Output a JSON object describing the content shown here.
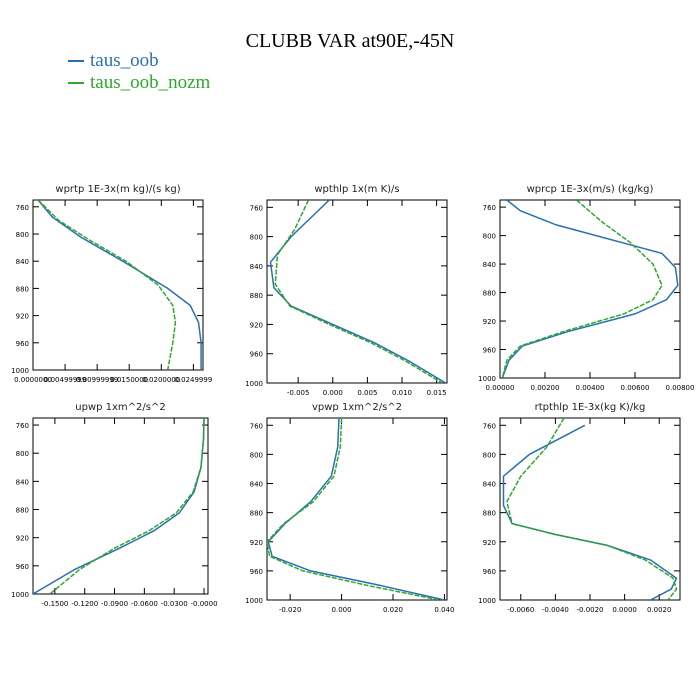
{
  "figure": {
    "title": "CLUBB VAR at90E,-45N",
    "legend": [
      {
        "label": "taus_oob",
        "color": "#2a70b0"
      },
      {
        "label": "taus_oob_nozm",
        "color": "#2fa82f"
      }
    ]
  },
  "chart_data": [
    {
      "type": "line",
      "title": "wprtp  1E-3x(m kg)/(s kg)",
      "xlim": [
        0.0,
        0.0265
      ],
      "ylim": [
        750,
        1000
      ],
      "y_reversed": true,
      "xticks": [
        "0.0000000",
        "0.00499999",
        "0.00999999",
        "0.0150000",
        "0.0200000",
        "0.0249999"
      ],
      "xtick_values": [
        0.0,
        0.005,
        0.01,
        0.015,
        0.02,
        0.025
      ],
      "yticks": [
        "760",
        "800",
        "840",
        "880",
        "920",
        "960",
        "1000"
      ],
      "ytick_values": [
        760,
        800,
        840,
        880,
        920,
        960,
        1000
      ],
      "series": [
        {
          "name": "taus_oob",
          "color": "#2a70b0",
          "x": [
            0.0008,
            0.003,
            0.0075,
            0.014,
            0.021,
            0.0245,
            0.0258,
            0.0262,
            0.0262
          ],
          "y": [
            750,
            775,
            805,
            840,
            880,
            905,
            930,
            960,
            1000
          ]
        },
        {
          "name": "taus_oob_nozm",
          "color": "#2fa82f",
          "x": [
            0.0008,
            0.004,
            0.009,
            0.0145,
            0.0195,
            0.0218,
            0.0222,
            0.0218,
            0.021
          ],
          "y": [
            750,
            780,
            810,
            840,
            875,
            905,
            930,
            960,
            1000
          ]
        }
      ]
    },
    {
      "type": "line",
      "title": "wpthlp  1x(m K)/s",
      "xlim": [
        -0.0095,
        0.0165
      ],
      "ylim": [
        750,
        1000
      ],
      "y_reversed": true,
      "xticks": [
        "-0.005",
        "0.000",
        "0.005",
        "0.010",
        "0.015"
      ],
      "xtick_values": [
        -0.005,
        0.0,
        0.005,
        0.01,
        0.015
      ],
      "yticks": [
        "760",
        "800",
        "840",
        "880",
        "920",
        "960",
        "1000"
      ],
      "ytick_values": [
        760,
        800,
        840,
        880,
        920,
        960,
        1000
      ],
      "series": [
        {
          "name": "taus_oob",
          "color": "#2a70b0",
          "x": [
            -0.0005,
            -0.006,
            -0.009,
            -0.0085,
            -0.006,
            0.0,
            0.006,
            0.011,
            0.0163
          ],
          "y": [
            750,
            800,
            835,
            870,
            895,
            920,
            945,
            970,
            1000
          ]
        },
        {
          "name": "taus_oob_nozm",
          "color": "#2fa82f",
          "x": [
            -0.0035,
            -0.0055,
            -0.008,
            -0.0083,
            -0.0062,
            -0.0005,
            0.0055,
            0.0105,
            0.0158
          ],
          "y": [
            750,
            790,
            825,
            865,
            895,
            920,
            945,
            970,
            1000
          ]
        }
      ]
    },
    {
      "type": "line",
      "title": "wprcp  1E-3x(m/s) (kg/kg)",
      "xlim": [
        0.0,
        0.008
      ],
      "ylim": [
        750,
        1000
      ],
      "y_reversed": true,
      "xticks": [
        "0.00000",
        "0.00200",
        "0.00400",
        "0.00600",
        "0.00800"
      ],
      "xtick_values": [
        0.0,
        0.002,
        0.004,
        0.006,
        0.008
      ],
      "yticks": [
        "760",
        "800",
        "840",
        "880",
        "920",
        "960",
        "1000"
      ],
      "ytick_values": [
        760,
        800,
        840,
        880,
        920,
        960,
        1000
      ],
      "series": [
        {
          "name": "taus_oob",
          "color": "#2a70b0",
          "x": [
            0.0003,
            0.0009,
            0.0025,
            0.0072,
            0.0078,
            0.0079,
            0.0074,
            0.006,
            0.003,
            0.001,
            0.0004,
            0.0001
          ],
          "y": [
            750,
            765,
            785,
            825,
            845,
            870,
            890,
            910,
            935,
            955,
            975,
            1000
          ]
        },
        {
          "name": "taus_oob_nozm",
          "color": "#2fa82f",
          "x": [
            0.0034,
            0.0045,
            0.0058,
            0.0068,
            0.0072,
            0.0068,
            0.0055,
            0.0028,
            0.0009,
            0.0003,
            0.0001
          ],
          "y": [
            750,
            780,
            810,
            840,
            870,
            890,
            910,
            935,
            955,
            975,
            1000
          ]
        }
      ]
    },
    {
      "type": "line",
      "title": "upwp  1xm^2/s^2",
      "xlim": [
        -0.172,
        0.004
      ],
      "ylim": [
        750,
        1000
      ],
      "y_reversed": true,
      "xticks": [
        "-0.1500",
        "-0.1200",
        "-0.0900",
        "-0.0600",
        "-0.0300",
        "-0.0000"
      ],
      "xtick_values": [
        -0.15,
        -0.12,
        -0.09,
        -0.06,
        -0.03,
        0.0
      ],
      "yticks": [
        "760",
        "800",
        "840",
        "880",
        "920",
        "960",
        "1000"
      ],
      "ytick_values": [
        760,
        800,
        840,
        880,
        920,
        960,
        1000
      ],
      "series": [
        {
          "name": "taus_oob",
          "color": "#2a70b0",
          "x": [
            0.0,
            -0.0005,
            -0.003,
            -0.01,
            -0.025,
            -0.05,
            -0.085,
            -0.13,
            -0.172
          ],
          "y": [
            750,
            780,
            820,
            855,
            885,
            910,
            935,
            965,
            1000
          ]
        },
        {
          "name": "taus_oob_nozm",
          "color": "#2fa82f",
          "x": [
            0.0,
            -0.0005,
            -0.003,
            -0.011,
            -0.028,
            -0.055,
            -0.09,
            -0.125,
            -0.155
          ],
          "y": [
            750,
            780,
            820,
            855,
            885,
            910,
            935,
            965,
            1000
          ]
        }
      ]
    },
    {
      "type": "line",
      "title": "vpwp  1xm^2/s^2",
      "xlim": [
        -0.029,
        0.041
      ],
      "ylim": [
        750,
        1000
      ],
      "y_reversed": true,
      "xticks": [
        "-0.020",
        "0.000",
        "0.020",
        "0.040"
      ],
      "xtick_values": [
        -0.02,
        0.0,
        0.02,
        0.04
      ],
      "yticks": [
        "760",
        "800",
        "840",
        "880",
        "920",
        "960",
        "1000"
      ],
      "ytick_values": [
        760,
        800,
        840,
        880,
        920,
        960,
        1000
      ],
      "series": [
        {
          "name": "taus_oob",
          "color": "#2a70b0",
          "x": [
            -0.001,
            -0.0015,
            -0.004,
            -0.012,
            -0.022,
            -0.0285,
            -0.027,
            -0.012,
            0.015,
            0.04
          ],
          "y": [
            750,
            790,
            830,
            865,
            895,
            920,
            940,
            960,
            980,
            1000
          ]
        },
        {
          "name": "taus_oob_nozm",
          "color": "#2fa82f",
          "x": [
            0.0,
            -0.0005,
            -0.003,
            -0.011,
            -0.0225,
            -0.029,
            -0.028,
            -0.015,
            0.01,
            0.038
          ],
          "y": [
            750,
            790,
            830,
            865,
            895,
            920,
            940,
            960,
            980,
            1000
          ]
        }
      ]
    },
    {
      "type": "line",
      "title": "rtpthlp  1E-3x(kg K)/kg",
      "xlim": [
        -0.0072,
        0.0032
      ],
      "ylim": [
        750,
        1000
      ],
      "y_reversed": true,
      "xticks": [
        "-0.0060",
        "-0.0040",
        "-0.0020",
        "0.0000",
        "0.0020"
      ],
      "xtick_values": [
        -0.006,
        -0.004,
        -0.002,
        0.0,
        0.002
      ],
      "yticks": [
        "760",
        "800",
        "840",
        "880",
        "920",
        "960",
        "1000"
      ],
      "ytick_values": [
        760,
        800,
        840,
        880,
        920,
        960,
        1000
      ],
      "series": [
        {
          "name": "taus_oob",
          "color": "#2a70b0",
          "x": [
            -0.0023,
            -0.0055,
            -0.007,
            -0.007,
            -0.0065,
            -0.004,
            -0.001,
            0.0015,
            0.003,
            0.0027,
            0.0015
          ],
          "y": [
            760,
            800,
            830,
            870,
            895,
            910,
            925,
            945,
            970,
            985,
            1000
          ]
        },
        {
          "name": "taus_oob_nozm",
          "color": "#2fa82f",
          "x": [
            -0.0035,
            -0.0045,
            -0.006,
            -0.0068,
            -0.0065,
            -0.004,
            -0.001,
            0.0012,
            0.0028,
            0.003,
            0.0025
          ],
          "y": [
            750,
            790,
            830,
            865,
            895,
            910,
            925,
            945,
            970,
            985,
            1000
          ]
        }
      ]
    }
  ]
}
